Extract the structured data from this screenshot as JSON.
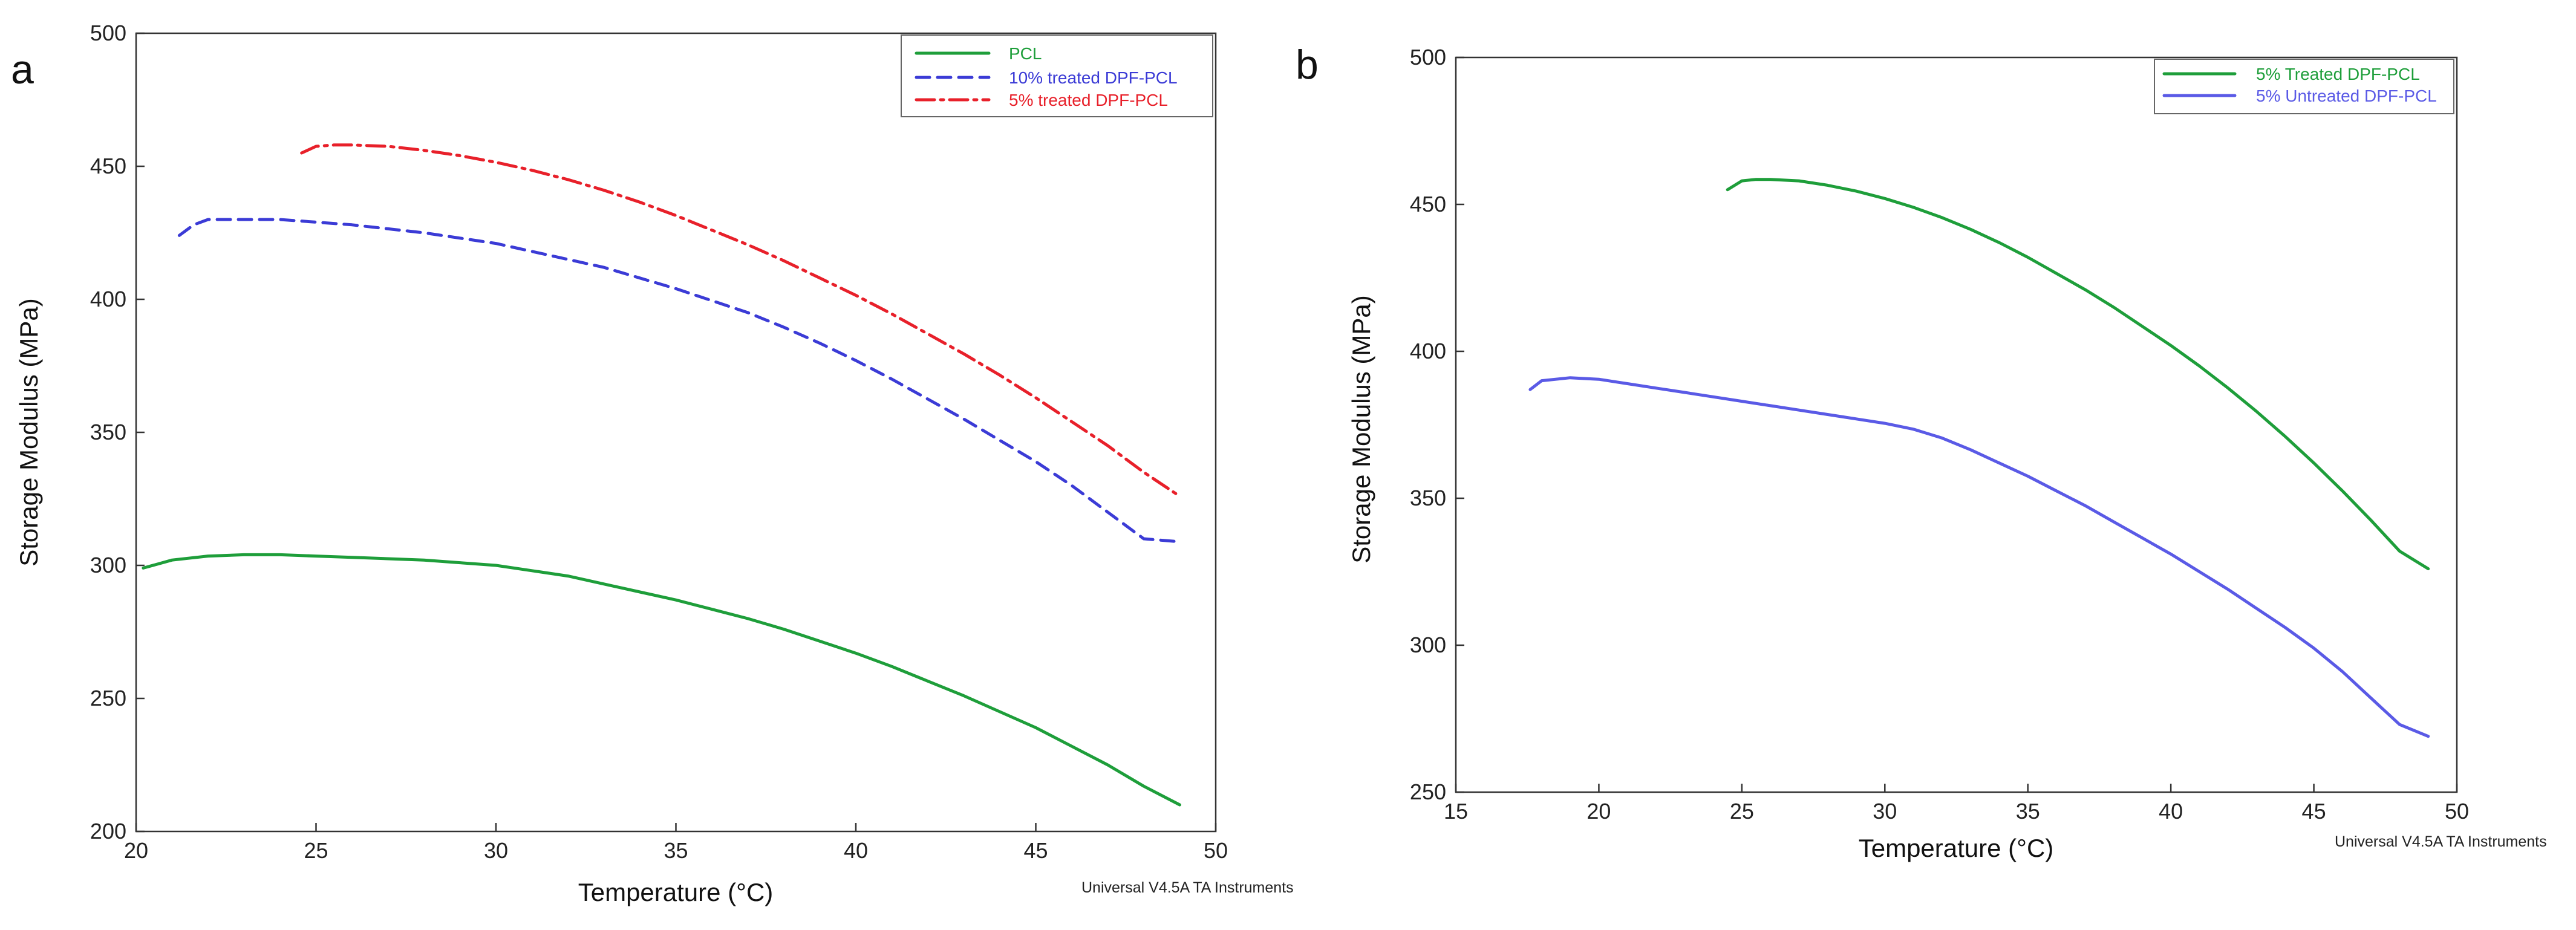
{
  "chart_data": [
    {
      "type": "line",
      "panel": "a",
      "title": "",
      "xlabel": "Temperature (°C)",
      "ylabel": "Storage Modulus (MPa)",
      "xlim": [
        20,
        50
      ],
      "ylim": [
        200,
        500
      ],
      "xticks": [
        20,
        25,
        30,
        35,
        40,
        45,
        50
      ],
      "yticks": [
        200,
        250,
        300,
        350,
        400,
        450,
        500
      ],
      "footer": "Universal V4.5A TA Instruments",
      "legend_position": "top-right",
      "series": [
        {
          "name": "PCL",
          "color": "#1e9e3a",
          "dash": "solid",
          "x": [
            20.2,
            21,
            22,
            23,
            24,
            25,
            26,
            27,
            28,
            29,
            30,
            31,
            32,
            33,
            34,
            35,
            36,
            37,
            38,
            39,
            40,
            41,
            42,
            43,
            44,
            45,
            46,
            47,
            48,
            49
          ],
          "y": [
            299,
            302,
            303.5,
            304,
            304,
            303.5,
            303,
            302.5,
            302,
            301,
            300,
            298,
            296,
            293,
            290,
            287,
            283.5,
            280,
            276,
            271.5,
            267,
            262,
            256.5,
            251,
            245,
            239,
            232,
            225,
            217,
            210
          ]
        },
        {
          "name": "10% treated DPF-PCL",
          "color": "#3b3bd6",
          "dash": "dashed",
          "x": [
            21.2,
            21.6,
            22,
            23,
            24,
            25,
            26,
            27,
            28,
            29,
            30,
            31,
            32,
            33,
            34,
            35,
            36,
            37,
            38,
            39,
            40,
            41,
            42,
            43,
            44,
            45,
            46,
            47,
            48,
            48.9
          ],
          "y": [
            424,
            428,
            430,
            430,
            430,
            429,
            428,
            426.5,
            425,
            423,
            421,
            418,
            415,
            412,
            408,
            404,
            399.5,
            395,
            389.5,
            383.5,
            377,
            370,
            362.5,
            355,
            347,
            339,
            330,
            320,
            310,
            309
          ]
        },
        {
          "name": "5% treated DPF-PCL",
          "color": "#e8202a",
          "dash": "dashdot",
          "x": [
            24.6,
            25,
            25.5,
            26,
            27,
            28,
            29,
            30,
            31,
            32,
            33,
            34,
            35,
            36,
            37,
            38,
            39,
            40,
            41,
            42,
            43,
            44,
            45,
            46,
            47,
            48,
            49
          ],
          "y": [
            455,
            457.5,
            458,
            458,
            457.5,
            456,
            454,
            451.5,
            448.5,
            445,
            441,
            436.5,
            431.5,
            426,
            420.5,
            414.5,
            408,
            401.5,
            394.5,
            387,
            379.5,
            371.5,
            363,
            354,
            345,
            335,
            326
          ]
        }
      ]
    },
    {
      "type": "line",
      "panel": "b",
      "title": "",
      "xlabel": "Temperature (°C)",
      "ylabel": "Storage Modulus (MPa)",
      "xlim": [
        15,
        50
      ],
      "ylim": [
        250,
        500
      ],
      "xticks": [
        15,
        20,
        25,
        30,
        35,
        40,
        45,
        50
      ],
      "yticks": [
        250,
        300,
        350,
        400,
        450,
        500
      ],
      "footer": "Universal V4.5A TA Instruments",
      "legend_position": "top-right",
      "series": [
        {
          "name": "5% Treated DPF-PCL",
          "color": "#1e9e3a",
          "dash": "solid",
          "x": [
            24.5,
            25,
            25.5,
            26,
            27,
            28,
            29,
            30,
            31,
            32,
            33,
            34,
            35,
            36,
            37,
            38,
            39,
            40,
            41,
            42,
            43,
            44,
            45,
            46,
            47,
            48,
            49
          ],
          "y": [
            455,
            458,
            458.5,
            458.5,
            458,
            456.5,
            454.5,
            452,
            449,
            445.5,
            441.5,
            437,
            432,
            426.5,
            421,
            415,
            408.5,
            402,
            395,
            387.5,
            379.5,
            371,
            362,
            352.5,
            342.5,
            332,
            326
          ]
        },
        {
          "name": "5% Untreated DPF-PCL",
          "color": "#5a5ae6",
          "dash": "solid",
          "x": [
            17.6,
            18,
            19,
            20,
            21,
            22,
            23,
            24,
            25,
            26,
            27,
            28,
            29,
            30,
            31,
            32,
            33,
            34,
            35,
            36,
            37,
            38,
            39,
            40,
            41,
            42,
            43,
            44,
            45,
            46,
            47,
            48,
            49
          ],
          "y": [
            387,
            390,
            391,
            390.5,
            389,
            387.5,
            386,
            384.5,
            383,
            381.5,
            380,
            378.5,
            377,
            375.5,
            373.5,
            370.5,
            366.5,
            362,
            357.5,
            352.5,
            347.5,
            342,
            336.5,
            331,
            325,
            319,
            312.5,
            306,
            299,
            291,
            282,
            273,
            269
          ]
        }
      ]
    }
  ]
}
